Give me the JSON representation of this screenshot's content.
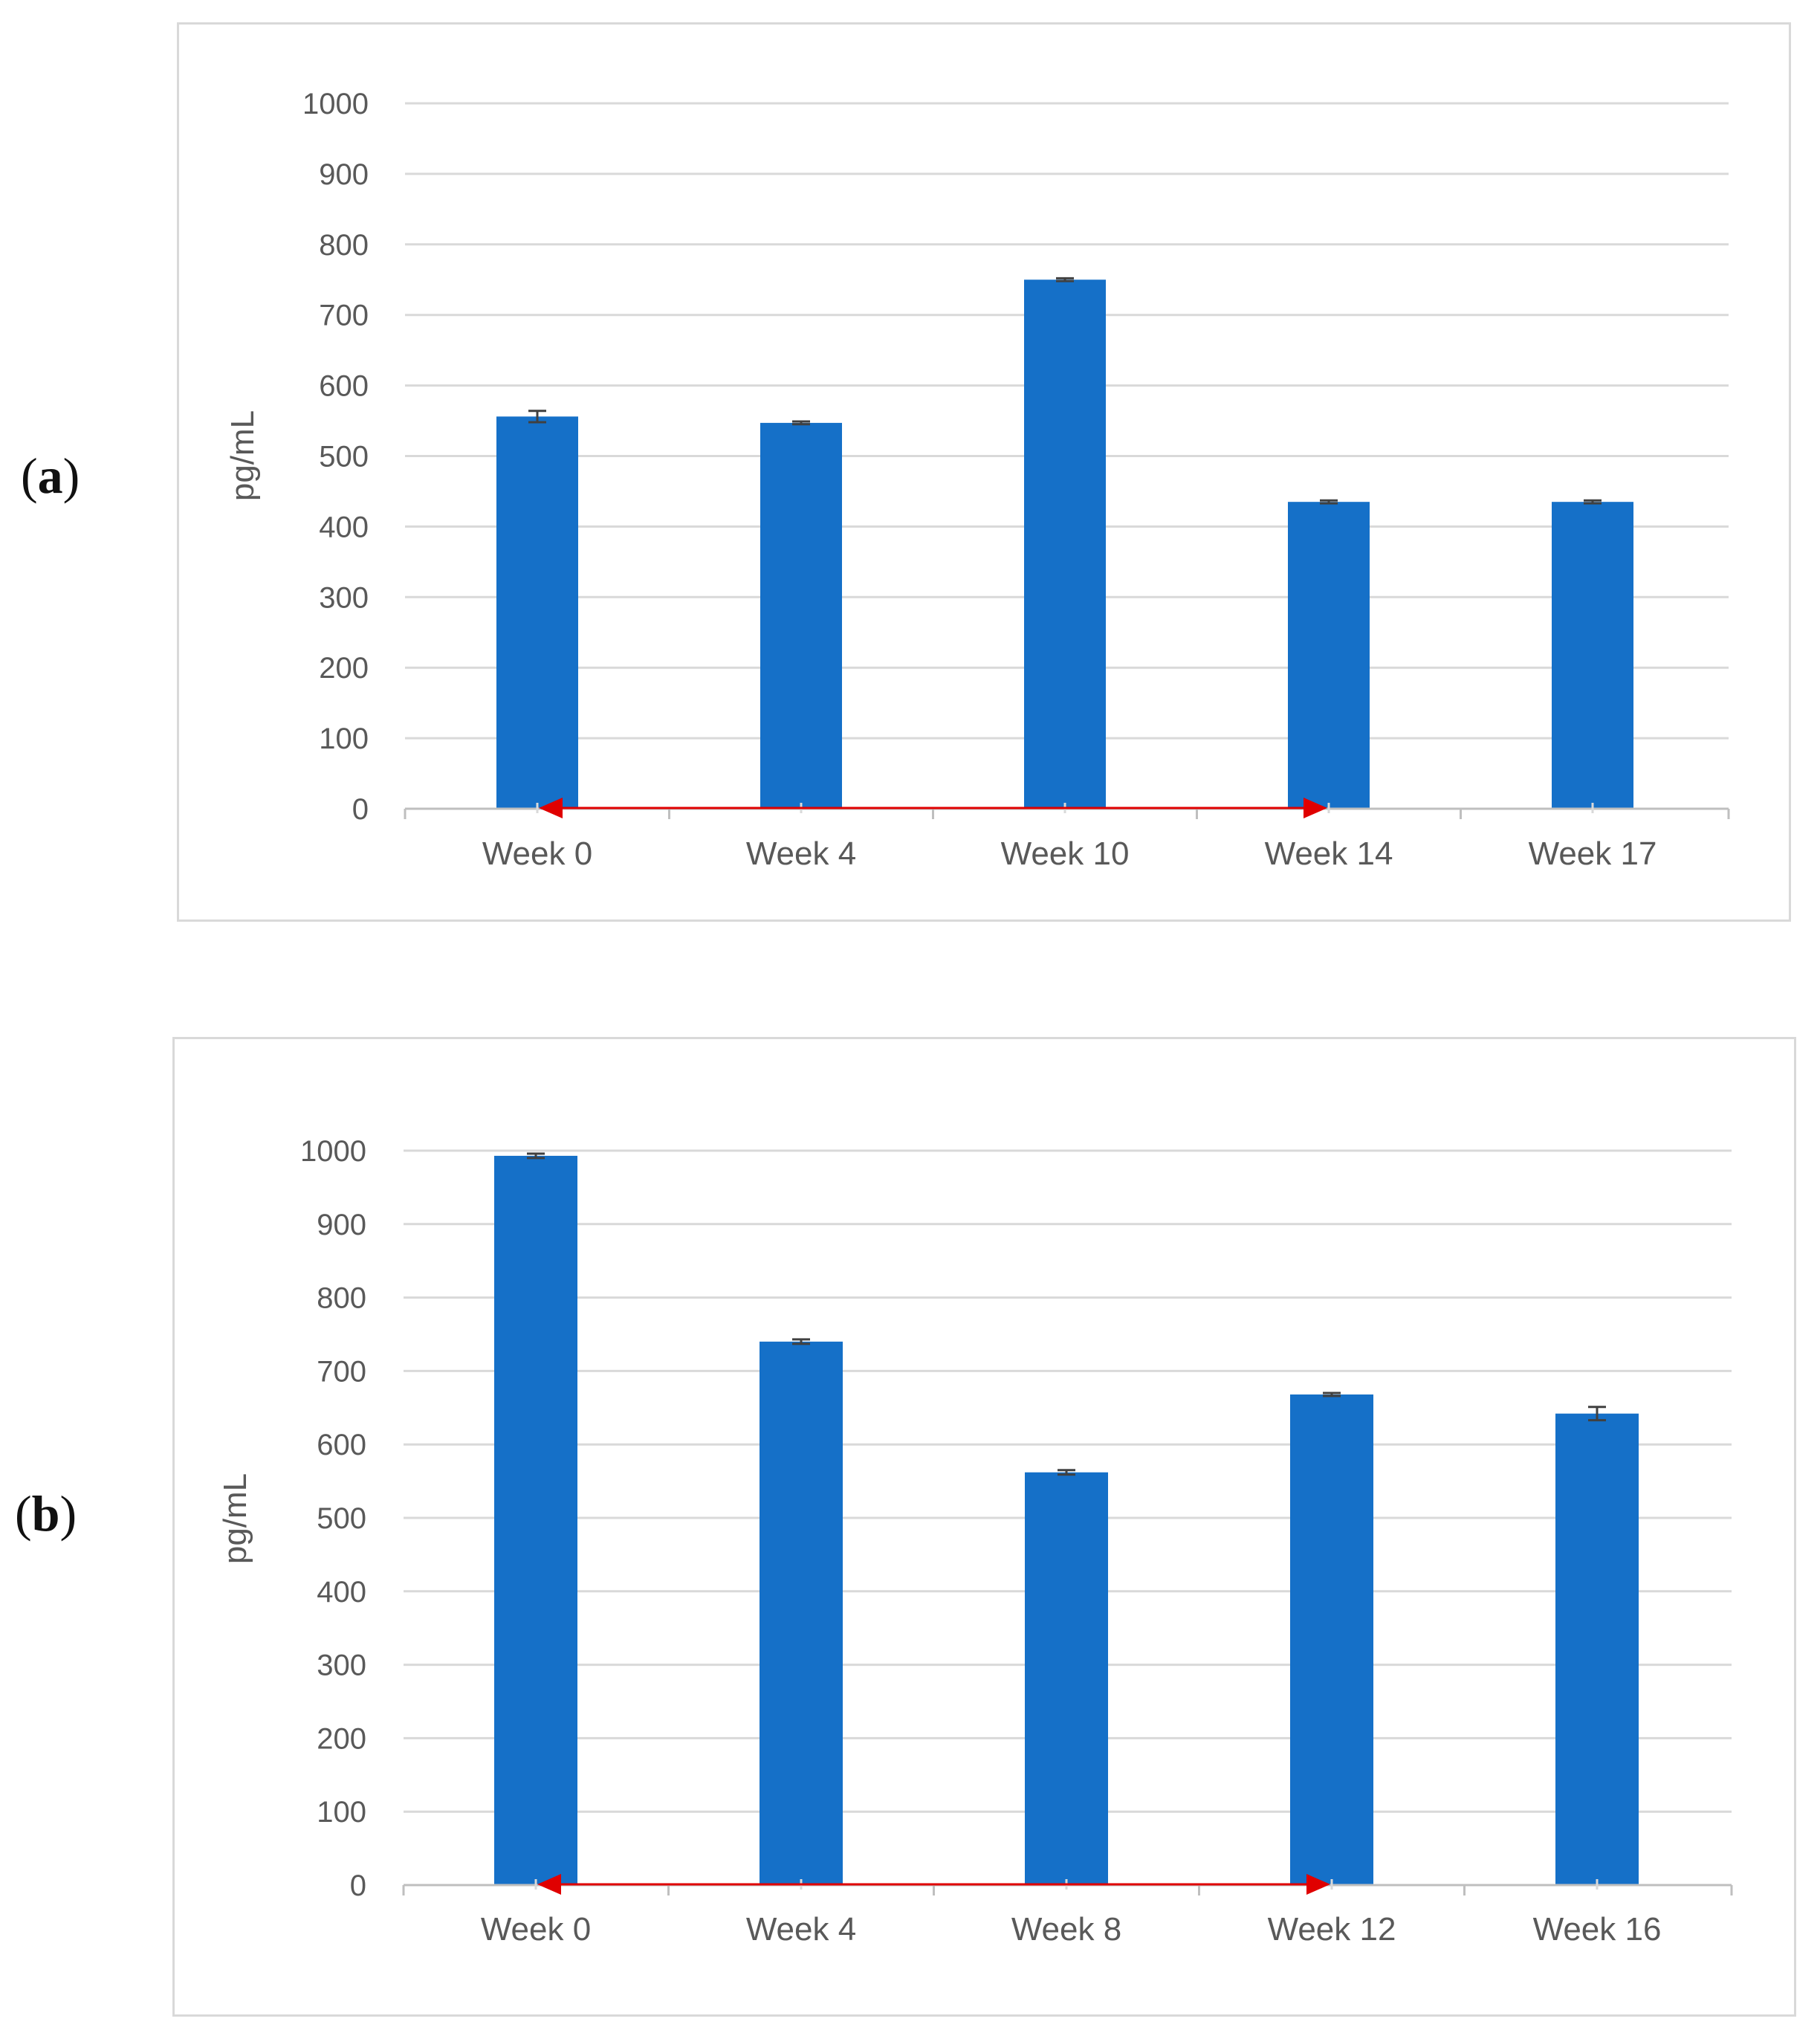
{
  "panels": [
    {
      "label_open": "(",
      "label_letter": "a",
      "label_close": ")"
    },
    {
      "label_open": "(",
      "label_letter": "b",
      "label_close": ")"
    }
  ],
  "chart_data": [
    {
      "type": "bar",
      "ylabel": "pg/mL",
      "ylim": [
        0,
        1000
      ],
      "yticks": [
        0,
        100,
        200,
        300,
        400,
        500,
        600,
        700,
        800,
        900,
        1000
      ],
      "grid": true,
      "categories": [
        "Week 0",
        "Week 4",
        "Week 10",
        "Week 14",
        "Week 17"
      ],
      "values": [
        556,
        547,
        750,
        435,
        435
      ],
      "errors": [
        8,
        2,
        2,
        2,
        2
      ],
      "bar_color": "#1570c8",
      "error_bar_color": "#404040",
      "annotation": {
        "type": "double-arrow",
        "color": "#e00000",
        "from": "Week 0",
        "to": "Week 14"
      }
    },
    {
      "type": "bar",
      "ylabel": "pg/mL",
      "ylim": [
        0,
        1000
      ],
      "yticks": [
        0,
        100,
        200,
        300,
        400,
        500,
        600,
        700,
        800,
        900,
        1000
      ],
      "grid": true,
      "categories": [
        "Week 0",
        "Week 4",
        "Week 8",
        "Week 12",
        "Week 16"
      ],
      "values": [
        993,
        740,
        562,
        668,
        642
      ],
      "errors": [
        3,
        3,
        3,
        2,
        9
      ],
      "bar_color": "#1570c8",
      "error_bar_color": "#404040",
      "annotation": {
        "type": "double-arrow",
        "color": "#e00000",
        "from": "Week 0",
        "to": "Week 12"
      }
    }
  ]
}
